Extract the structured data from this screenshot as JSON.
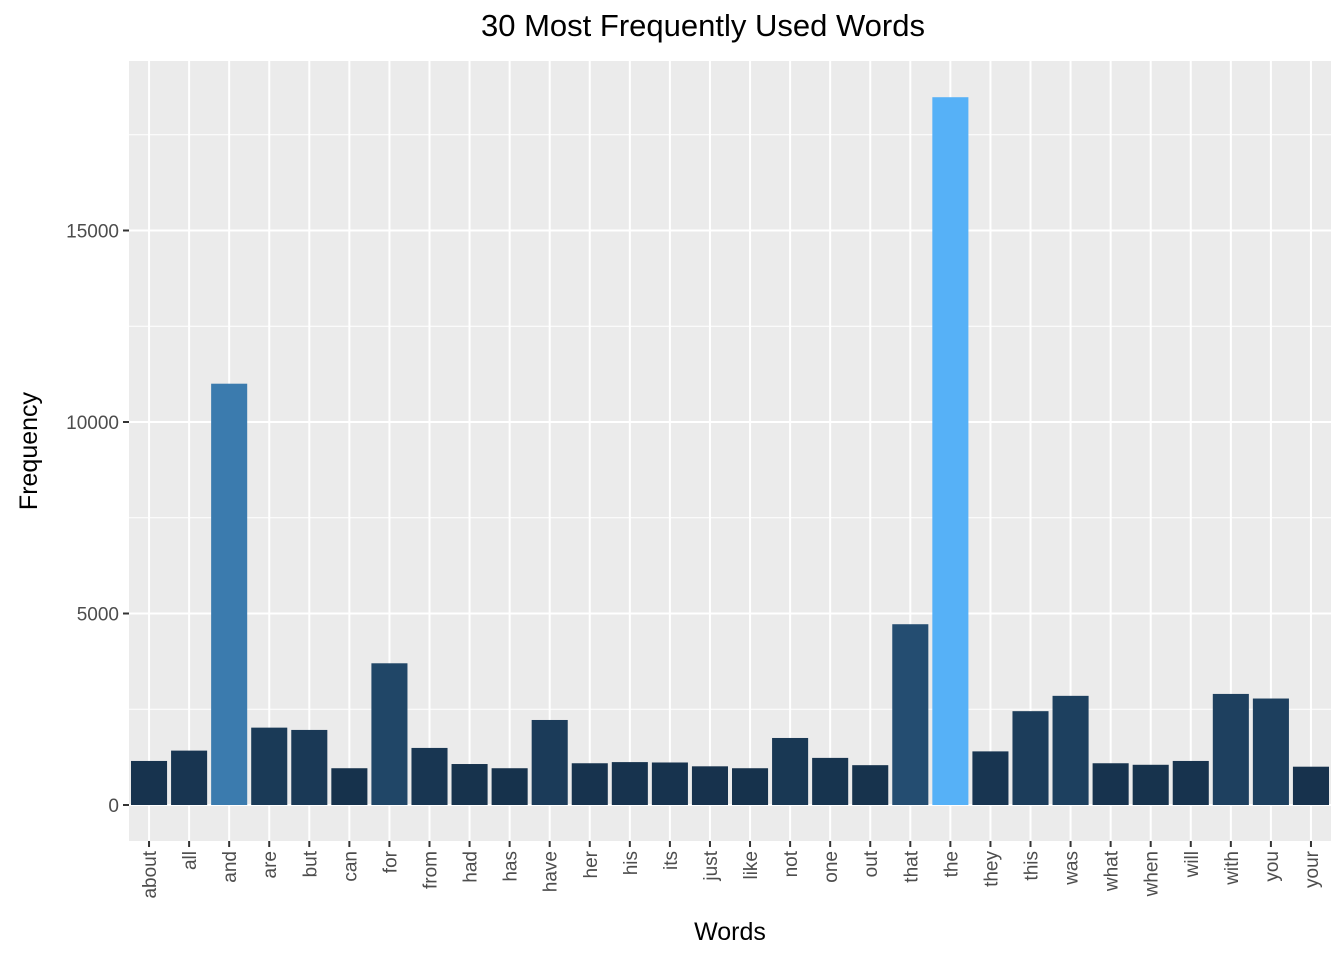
{
  "chart_data": {
    "type": "bar",
    "title": "30 Most Frequently Used Words",
    "xlabel": "Words",
    "ylabel": "Frequency",
    "ylim": [
      -900,
      19500
    ],
    "yticks": [
      0,
      5000,
      10000,
      15000
    ],
    "ytick_labels": [
      "0",
      "5000",
      "10000",
      "15000"
    ],
    "grid": true,
    "legend": "none",
    "color_scale": {
      "low": "#132B43",
      "high": "#56B1F7"
    },
    "categories": [
      "about",
      "all",
      "and",
      "are",
      "but",
      "can",
      "for",
      "from",
      "had",
      "has",
      "have",
      "her",
      "his",
      "its",
      "just",
      "like",
      "not",
      "one",
      "out",
      "that",
      "the",
      "they",
      "this",
      "was",
      "what",
      "when",
      "will",
      "with",
      "you",
      "your"
    ],
    "values": [
      1150,
      1420,
      11000,
      2020,
      1960,
      960,
      3700,
      1490,
      1070,
      960,
      2220,
      1090,
      1120,
      1110,
      1010,
      960,
      1750,
      1230,
      1040,
      4720,
      18480,
      1400,
      2450,
      2850,
      1090,
      1050,
      1150,
      2900,
      2780,
      1000
    ]
  }
}
